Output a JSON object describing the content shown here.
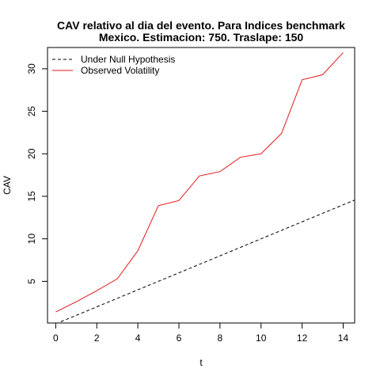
{
  "chart_data": {
    "type": "line",
    "title": [
      "CAV relativo al dia del evento. Para Indices benchmark",
      "Mexico. Estimacion: 750. Traslape: 150"
    ],
    "xlabel": "t",
    "ylabel": "CAV",
    "xlim": [
      -0.4,
      14.56
    ],
    "ylim": [
      0.1,
      32.5
    ],
    "xticks": [
      0,
      2,
      4,
      6,
      8,
      10,
      12,
      14
    ],
    "yticks": [
      5,
      10,
      15,
      20,
      25,
      30
    ],
    "legend_position": "top-left",
    "series": [
      {
        "name": "Under Null Hypothesis",
        "style": "dashed",
        "color": "#000000",
        "x": [
          0,
          14.56
        ],
        "y": [
          0,
          14.56
        ]
      },
      {
        "name": "Observed Volatility",
        "style": "solid",
        "color": "#e31a1c",
        "x": [
          0,
          1,
          2,
          3,
          4,
          5,
          6,
          7,
          8,
          9,
          10,
          11,
          12,
          13,
          14
        ],
        "y": [
          1.4,
          2.6,
          3.9,
          5.3,
          8.6,
          13.9,
          14.5,
          17.4,
          17.9,
          19.6,
          20.0,
          22.4,
          28.7,
          29.3,
          31.9
        ]
      }
    ]
  }
}
